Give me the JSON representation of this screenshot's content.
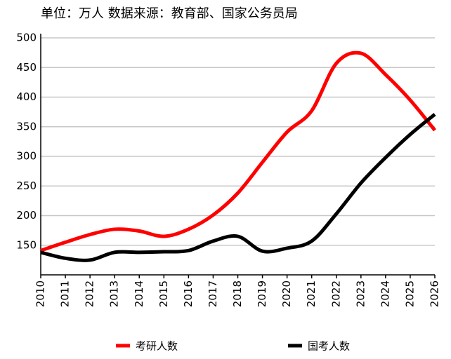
{
  "chart_data": {
    "type": "line",
    "title": "单位：万人  数据来源：教育部、国家公务员局",
    "x": [
      2010,
      2011,
      2012,
      2013,
      2014,
      2015,
      2016,
      2017,
      2018,
      2019,
      2020,
      2021,
      2022,
      2023,
      2024,
      2025,
      2026
    ],
    "xlim": [
      2010,
      2026
    ],
    "xticks": [
      2010,
      2011,
      2012,
      2013,
      2014,
      2015,
      2016,
      2017,
      2018,
      2019,
      2020,
      2021,
      2022,
      2023,
      2024,
      2025,
      2026
    ],
    "ylim": [
      100,
      500
    ],
    "yticks": [
      150,
      200,
      250,
      300,
      350,
      400,
      450,
      500
    ],
    "grid": true,
    "legend": "bottom",
    "series": [
      {
        "name": "考研人数",
        "color": "#ff0000",
        "values": [
          141,
          155,
          168,
          177,
          174,
          165,
          177,
          201,
          238,
          290,
          341,
          377,
          457,
          474,
          438,
          395,
          344
        ]
      },
      {
        "name": "国考人数",
        "color": "#000000",
        "values": [
          138,
          128,
          125,
          138,
          138,
          139,
          141,
          157,
          165,
          140,
          145,
          157,
          203,
          255,
          298,
          337,
          371
        ]
      }
    ]
  }
}
